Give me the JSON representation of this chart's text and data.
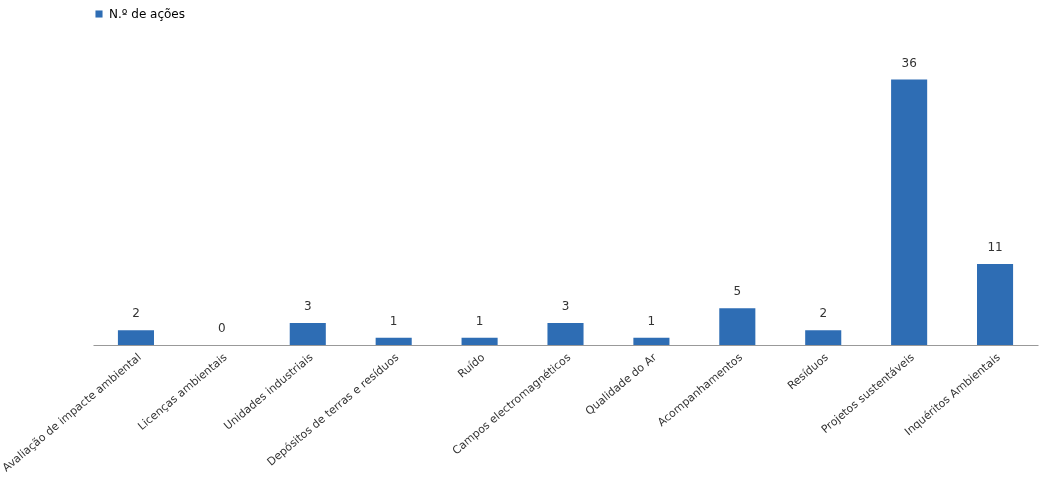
{
  "chart_data": {
    "type": "bar",
    "categories": [
      "Avaliação de impacte ambiental",
      "Licenças ambientais",
      "Unidades industriais",
      "Depósitos de terras e resíduos",
      "Ruído",
      "Campos electromagnéticos",
      "Qualidade do Ar",
      "Acompanhamentos",
      "Resíduos",
      "Projetos sustentáveis",
      "Inquéritos Ambientais"
    ],
    "series": [
      {
        "name": "N.º de ações",
        "color": "#2e6db4",
        "values": [
          2,
          0,
          3,
          1,
          1,
          3,
          1,
          5,
          2,
          36,
          11
        ]
      }
    ],
    "data_labels": true,
    "legend": "top",
    "grid": false,
    "tick_labels": "x"
  }
}
